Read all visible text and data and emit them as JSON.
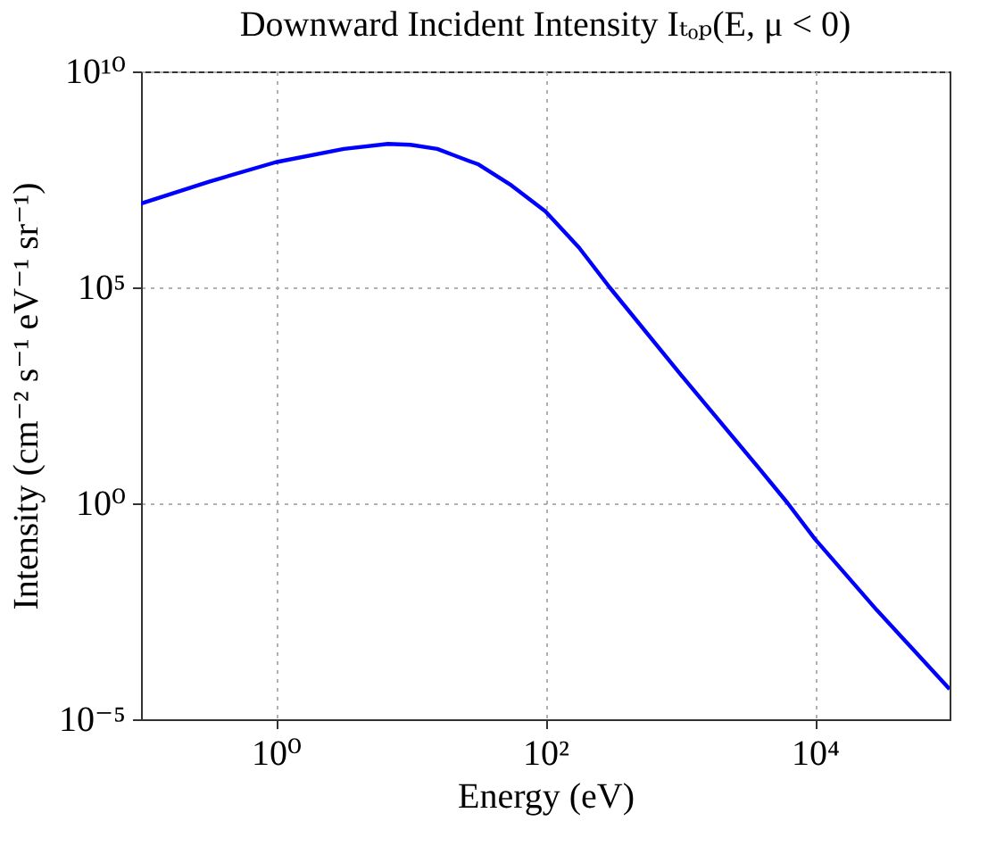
{
  "chart_data": {
    "type": "line",
    "title": "Downward Incident Intensity Iₜₒₚ(E, μ < 0)",
    "xlabel": "Energy (eV)",
    "ylabel": "Intensity (cm⁻² s⁻¹ eV⁻¹ sr⁻¹)",
    "x": [
      0.1,
      0.32,
      1,
      3.2,
      6.8,
      10,
      15.8,
      27,
      32,
      56,
      100,
      178,
      300,
      1000,
      3800,
      6300,
      10000,
      29000,
      100000
    ],
    "series": [
      {
        "color": "#0000ff",
        "values": [
          8700000.0,
          28000000.0,
          79000000.0,
          160000000.0,
          210000000.0,
          200000000.0,
          160000000.0,
          85000000.0,
          70000000.0,
          23000000.0,
          5800000.0,
          830000.0,
          100000.0,
          1000.0,
          6.8,
          1,
          0.15,
          0.0033,
          5e-05
        ]
      }
    ],
    "log": "xy",
    "xlim": [
      0.1,
      100000
    ],
    "ylim": [
      1e-05,
      10000000000.0
    ],
    "xticks": [
      {
        "value": 1,
        "label": "10⁰"
      },
      {
        "value": 100,
        "label": "10²"
      },
      {
        "value": 10000,
        "label": "10⁴"
      }
    ],
    "yticks": [
      {
        "value": 1e-05,
        "label": "10⁻⁵"
      },
      {
        "value": 1,
        "label": "10⁰"
      },
      {
        "value": 100000,
        "label": "10⁵"
      },
      {
        "value": 10000000000,
        "label": "10¹⁰"
      }
    ],
    "grid": true,
    "line_style": "solid",
    "marker": "none"
  }
}
